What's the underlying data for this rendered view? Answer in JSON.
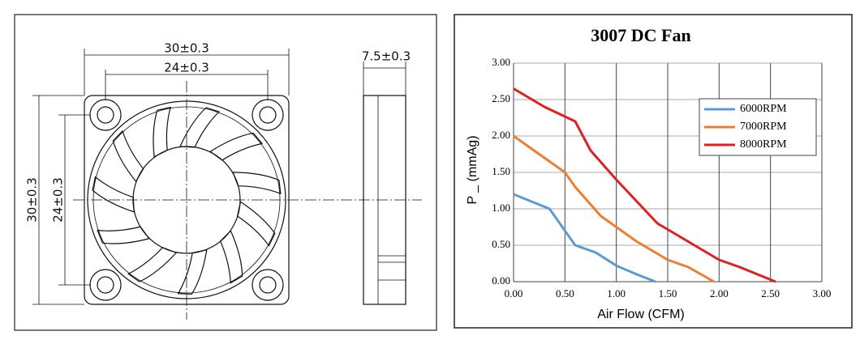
{
  "drawing": {
    "labels": [
      "30±0.3",
      "24±0.3",
      "7.5±0.3",
      "30±0.3",
      "24±0.3"
    ]
  },
  "chart_data": {
    "type": "line",
    "title": "3007 DC Fan",
    "x_label": "Air Flow (CFM)",
    "y_label": "P _ (mmAg)",
    "xlim": [
      0,
      3
    ],
    "ylim": [
      0,
      3
    ],
    "xticks": [
      {
        "value": 0,
        "label": "0.00"
      },
      {
        "value": 0.5,
        "label": "0.50"
      },
      {
        "value": 1,
        "label": "1.00"
      },
      {
        "value": 1.5,
        "label": "1.50"
      },
      {
        "value": 2,
        "label": "2.00"
      },
      {
        "value": 2.5,
        "label": "2.50"
      },
      {
        "value": 3,
        "label": "3.00"
      }
    ],
    "yticks": [
      {
        "value": 0,
        "label": "0.00"
      },
      {
        "value": 0.5,
        "label": "0.50"
      },
      {
        "value": 1,
        "label": "1.00"
      },
      {
        "value": 1.5,
        "label": "1.50"
      },
      {
        "value": 2,
        "label": "2.00"
      },
      {
        "value": 2.5,
        "label": "2.50"
      },
      {
        "value": 3,
        "label": "3.00"
      }
    ],
    "grid": true,
    "legend": "upper right",
    "series": [
      {
        "name": "6000RPM",
        "color": "#5b9bd5",
        "x": [
          0,
          0.35,
          0.5,
          0.6,
          0.8,
          1.0,
          1.2,
          1.38
        ],
        "values": [
          1.2,
          1.0,
          0.7,
          0.5,
          0.4,
          0.22,
          0.1,
          0
        ]
      },
      {
        "name": "7000RPM",
        "color": "#ed7d31",
        "x": [
          0,
          0.3,
          0.5,
          0.6,
          0.85,
          1.0,
          1.2,
          1.5,
          1.7,
          1.95
        ],
        "values": [
          2.0,
          1.7,
          1.5,
          1.3,
          0.9,
          0.75,
          0.55,
          0.3,
          0.2,
          0
        ]
      },
      {
        "name": "8000RPM",
        "color": "#e02020",
        "x": [
          0,
          0.3,
          0.6,
          0.75,
          1.0,
          1.2,
          1.4,
          1.7,
          2.0,
          2.2,
          2.55
        ],
        "values": [
          2.65,
          2.4,
          2.2,
          1.8,
          1.4,
          1.1,
          0.8,
          0.55,
          0.3,
          0.2,
          0
        ]
      }
    ]
  }
}
